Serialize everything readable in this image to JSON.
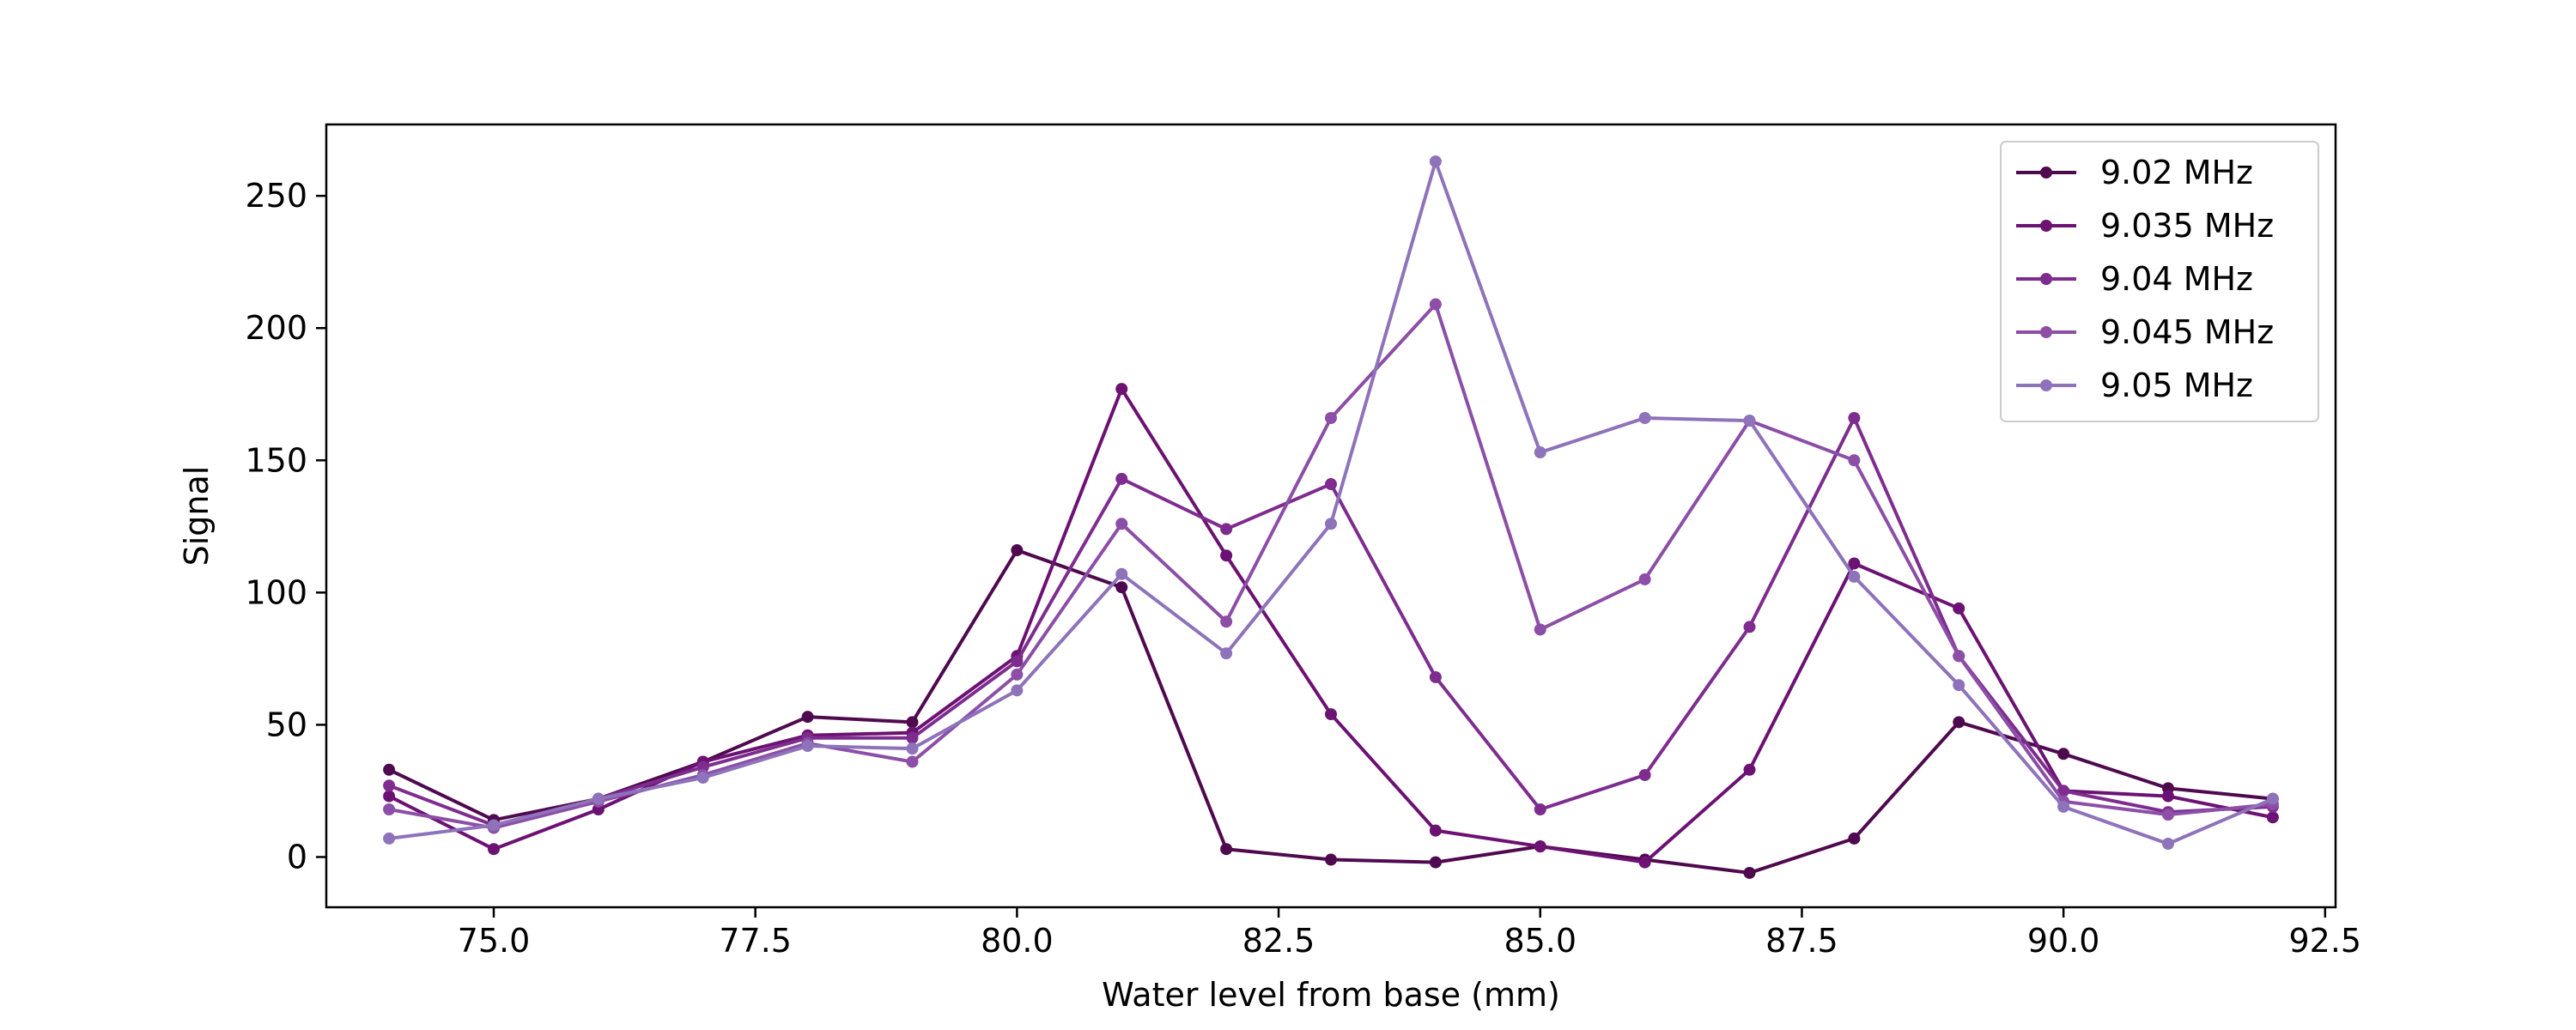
{
  "chart_data": {
    "type": "line",
    "title": "",
    "xlabel": "Water level from base (mm)",
    "ylabel": "Signal",
    "xlim": [
      73.4,
      92.6
    ],
    "ylim": [
      -19,
      277
    ],
    "xticks": [
      75.0,
      77.5,
      80.0,
      82.5,
      85.0,
      87.5,
      90.0,
      92.5
    ],
    "xtick_labels": [
      "75.0",
      "77.5",
      "80.0",
      "82.5",
      "85.0",
      "87.5",
      "90.0",
      "92.5"
    ],
    "yticks": [
      0,
      50,
      100,
      150,
      200,
      250
    ],
    "ytick_labels": [
      "0",
      "50",
      "100",
      "150",
      "200",
      "250"
    ],
    "grid": false,
    "legend_position": "top-right",
    "x": [
      74,
      75,
      76,
      77,
      78,
      79,
      80,
      81,
      82,
      83,
      84,
      85,
      86,
      87,
      88,
      89,
      90,
      91,
      92
    ],
    "series": [
      {
        "name": "9.02 MHz",
        "color": "#4f0a4f",
        "values": [
          33,
          14,
          22,
          36,
          53,
          51,
          116,
          102,
          3,
          -1,
          -2,
          4,
          -1,
          -6,
          7,
          51,
          39,
          26,
          22
        ]
      },
      {
        "name": "9.035 MHz",
        "color": "#6c1273",
        "values": [
          23,
          3,
          18,
          36,
          46,
          47,
          76,
          177,
          114,
          54,
          10,
          4,
          -2,
          33,
          111,
          94,
          25,
          23,
          15
        ]
      },
      {
        "name": "9.04 MHz",
        "color": "#7e2d8f",
        "values": [
          27,
          12,
          22,
          34,
          45,
          45,
          74,
          143,
          124,
          141,
          68,
          18,
          31,
          87,
          166,
          76,
          25,
          17,
          19
        ]
      },
      {
        "name": "9.045 MHz",
        "color": "#8c4ea6",
        "values": [
          18,
          11,
          21,
          31,
          43,
          36,
          69,
          126,
          89,
          166,
          209,
          86,
          105,
          165,
          150,
          76,
          21,
          16,
          20
        ]
      },
      {
        "name": "9.05 MHz",
        "color": "#8e72ba",
        "values": [
          7,
          12,
          22,
          30,
          42,
          41,
          63,
          107,
          77,
          126,
          263,
          153,
          166,
          165,
          106,
          65,
          19,
          5,
          22
        ]
      }
    ]
  }
}
